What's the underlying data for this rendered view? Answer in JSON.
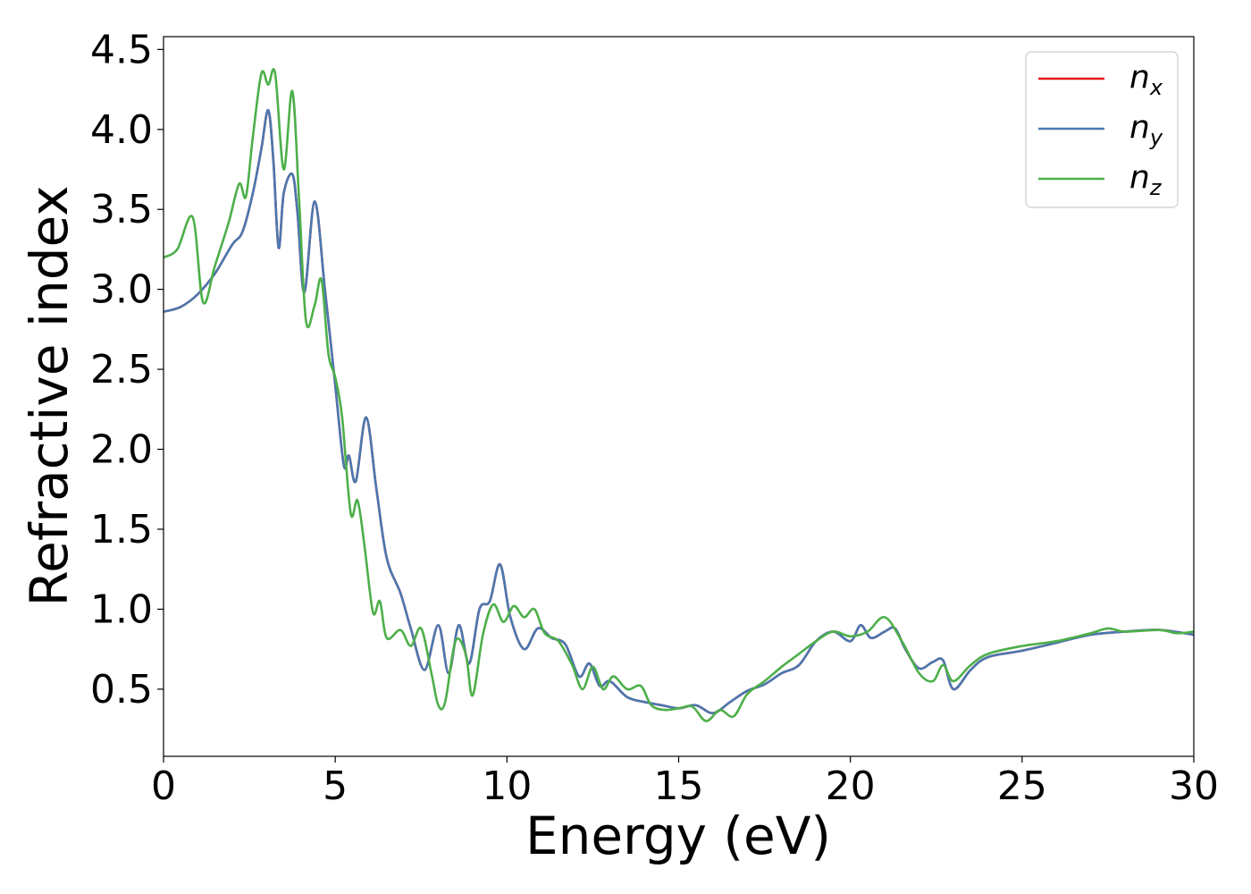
{
  "chart_data": {
    "type": "line",
    "xlabel": "Energy (eV)",
    "ylabel": "Refractive index",
    "xlim": [
      0,
      30
    ],
    "ylim": [
      0.08,
      4.58
    ],
    "xticks": [
      0,
      5,
      10,
      15,
      20,
      25,
      30
    ],
    "xtick_labels": [
      "0",
      "5",
      "10",
      "15",
      "20",
      "25",
      "30"
    ],
    "yticks": [
      0.5,
      1.0,
      1.5,
      2.0,
      2.5,
      3.0,
      3.5,
      4.0,
      4.5
    ],
    "ytick_labels": [
      "0.5",
      "1.0",
      "1.5",
      "2.0",
      "2.5",
      "3.0",
      "3.5",
      "4.0",
      "4.5"
    ],
    "grid": false,
    "legend_position": "top-right",
    "series": [
      {
        "name": "n_x",
        "label_base": "n",
        "label_sub": "x",
        "color": "#e41a1c",
        "x": [
          0,
          0.5,
          1.0,
          1.5,
          2.0,
          2.3,
          2.6,
          2.85,
          3.05,
          3.2,
          3.35,
          3.5,
          3.75,
          3.9,
          4.1,
          4.4,
          4.7,
          5.0,
          5.25,
          5.4,
          5.6,
          5.9,
          6.2,
          6.5,
          6.9,
          7.2,
          7.6,
          8.0,
          8.3,
          8.6,
          8.9,
          9.2,
          9.5,
          9.8,
          10.1,
          10.5,
          10.9,
          11.3,
          11.7,
          12.1,
          12.4,
          12.7,
          13.0,
          13.5,
          14.0,
          14.5,
          15.0,
          15.5,
          16.0,
          16.5,
          17.0,
          17.5,
          18.0,
          18.5,
          19.0,
          19.5,
          20.0,
          20.3,
          20.6,
          21.0,
          21.3,
          21.6,
          22.0,
          22.4,
          22.7,
          23.0,
          23.5,
          24.0,
          25.0,
          26.0,
          27.0,
          28.0,
          29.0,
          30.0
        ],
        "y": [
          2.86,
          2.89,
          2.97,
          3.1,
          3.28,
          3.36,
          3.6,
          3.88,
          4.12,
          3.8,
          3.26,
          3.6,
          3.72,
          3.48,
          2.98,
          3.55,
          3.0,
          2.4,
          1.9,
          1.96,
          1.8,
          2.2,
          1.75,
          1.32,
          1.1,
          0.88,
          0.62,
          0.9,
          0.6,
          0.9,
          0.66,
          1.0,
          1.05,
          1.28,
          0.95,
          0.75,
          0.88,
          0.82,
          0.78,
          0.58,
          0.66,
          0.52,
          0.55,
          0.45,
          0.42,
          0.4,
          0.38,
          0.4,
          0.35,
          0.42,
          0.49,
          0.53,
          0.6,
          0.65,
          0.8,
          0.86,
          0.8,
          0.9,
          0.82,
          0.86,
          0.88,
          0.75,
          0.63,
          0.67,
          0.68,
          0.5,
          0.62,
          0.7,
          0.74,
          0.79,
          0.84,
          0.86,
          0.87,
          0.84
        ]
      },
      {
        "name": "n_y",
        "label_base": "n",
        "label_sub": "y",
        "color": "#4a78b0",
        "x": [
          0,
          0.5,
          1.0,
          1.5,
          2.0,
          2.3,
          2.6,
          2.85,
          3.05,
          3.2,
          3.35,
          3.5,
          3.75,
          3.9,
          4.1,
          4.4,
          4.7,
          5.0,
          5.25,
          5.4,
          5.6,
          5.9,
          6.2,
          6.5,
          6.9,
          7.2,
          7.6,
          8.0,
          8.3,
          8.6,
          8.9,
          9.2,
          9.5,
          9.8,
          10.1,
          10.5,
          10.9,
          11.3,
          11.7,
          12.1,
          12.4,
          12.7,
          13.0,
          13.5,
          14.0,
          14.5,
          15.0,
          15.5,
          16.0,
          16.5,
          17.0,
          17.5,
          18.0,
          18.5,
          19.0,
          19.5,
          20.0,
          20.3,
          20.6,
          21.0,
          21.3,
          21.6,
          22.0,
          22.4,
          22.7,
          23.0,
          23.5,
          24.0,
          25.0,
          26.0,
          27.0,
          28.0,
          29.0,
          30.0
        ],
        "y": [
          2.86,
          2.89,
          2.97,
          3.1,
          3.28,
          3.36,
          3.6,
          3.88,
          4.12,
          3.8,
          3.26,
          3.6,
          3.72,
          3.48,
          2.98,
          3.55,
          3.0,
          2.4,
          1.9,
          1.96,
          1.8,
          2.2,
          1.75,
          1.32,
          1.1,
          0.88,
          0.62,
          0.9,
          0.6,
          0.9,
          0.66,
          1.0,
          1.05,
          1.28,
          0.95,
          0.75,
          0.88,
          0.82,
          0.78,
          0.58,
          0.66,
          0.52,
          0.55,
          0.45,
          0.42,
          0.4,
          0.38,
          0.4,
          0.35,
          0.42,
          0.49,
          0.53,
          0.6,
          0.65,
          0.8,
          0.86,
          0.8,
          0.9,
          0.82,
          0.86,
          0.88,
          0.75,
          0.63,
          0.67,
          0.68,
          0.5,
          0.62,
          0.7,
          0.74,
          0.79,
          0.84,
          0.86,
          0.87,
          0.84
        ]
      },
      {
        "name": "n_z",
        "label_base": "n",
        "label_sub": "z",
        "color": "#4daf4a",
        "x": [
          0,
          0.4,
          0.85,
          1.15,
          1.5,
          1.9,
          2.2,
          2.4,
          2.6,
          2.85,
          3.05,
          3.25,
          3.5,
          3.75,
          3.95,
          4.15,
          4.4,
          4.6,
          4.8,
          5.0,
          5.2,
          5.45,
          5.65,
          5.85,
          6.1,
          6.3,
          6.5,
          6.9,
          7.2,
          7.5,
          7.8,
          8.0,
          8.2,
          8.5,
          8.8,
          9.0,
          9.3,
          9.6,
          9.9,
          10.2,
          10.5,
          10.8,
          11.1,
          11.5,
          11.9,
          12.2,
          12.5,
          12.8,
          13.1,
          13.5,
          13.9,
          14.2,
          14.6,
          15.0,
          15.4,
          15.8,
          16.2,
          16.6,
          17.0,
          17.5,
          18.0,
          18.5,
          19.0,
          19.5,
          20.0,
          20.5,
          21.0,
          21.5,
          22.0,
          22.4,
          22.7,
          23.0,
          23.5,
          24.0,
          25.0,
          26.0,
          27.0,
          27.5,
          28.0,
          29.0,
          29.5,
          30.0
        ],
        "y": [
          3.2,
          3.25,
          3.45,
          2.92,
          3.15,
          3.42,
          3.66,
          3.58,
          3.95,
          4.35,
          4.28,
          4.35,
          3.75,
          4.24,
          3.55,
          2.8,
          2.9,
          3.06,
          2.6,
          2.45,
          2.2,
          1.6,
          1.68,
          1.4,
          0.98,
          1.05,
          0.82,
          0.87,
          0.77,
          0.88,
          0.6,
          0.4,
          0.42,
          0.8,
          0.72,
          0.46,
          0.84,
          1.03,
          0.92,
          1.02,
          0.95,
          1.0,
          0.85,
          0.8,
          0.65,
          0.5,
          0.64,
          0.5,
          0.58,
          0.5,
          0.52,
          0.4,
          0.37,
          0.38,
          0.39,
          0.3,
          0.37,
          0.33,
          0.47,
          0.55,
          0.64,
          0.72,
          0.8,
          0.86,
          0.83,
          0.86,
          0.95,
          0.8,
          0.6,
          0.55,
          0.65,
          0.55,
          0.65,
          0.72,
          0.77,
          0.8,
          0.85,
          0.88,
          0.86,
          0.87,
          0.85,
          0.86
        ]
      }
    ]
  }
}
